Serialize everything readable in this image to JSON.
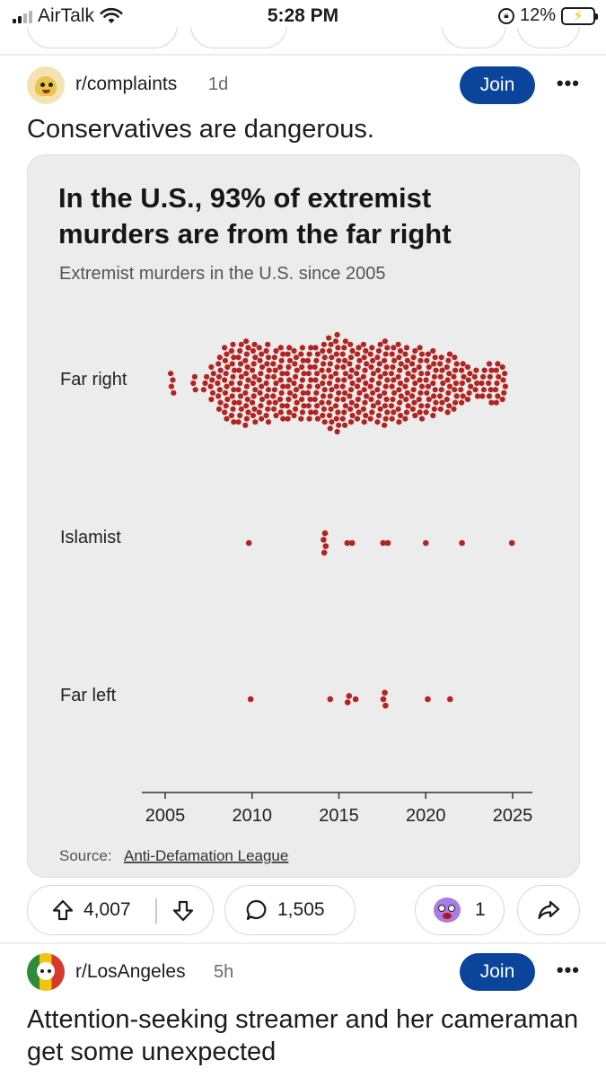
{
  "status_bar": {
    "carrier": "AirTalk",
    "time": "5:28 PM",
    "battery": "12%"
  },
  "post": {
    "subreddit": "r/complaints",
    "age": "1d",
    "join_label": "Join",
    "more_label": "•••",
    "title": "Conservatives are dangerous.",
    "upvotes": "4,007",
    "comments": "1,505",
    "awards": "1"
  },
  "chart_data": {
    "type": "scatter",
    "title_line1": "In the U.S., 93% of extremist",
    "title_line2": "murders are from the far right",
    "subtitle": "Extremist murders in the U.S. since 2005",
    "categories": [
      "Far right",
      "Islamist",
      "Far left"
    ],
    "xlim": [
      2005,
      2025
    ],
    "xticks": [
      2005,
      2010,
      2015,
      2020,
      2025
    ],
    "xtick_labels": [
      "2005",
      "2010",
      "2015",
      "2020",
      "2025"
    ],
    "source_prefix": "Source:",
    "source": "Anti-Defamation League",
    "dot_color": "#b3231f",
    "series": [
      {
        "category": "Far right",
        "dots_per_year": [
          [
            2005.4,
            4
          ],
          [
            2006.7,
            3
          ],
          [
            2007.3,
            3
          ],
          [
            2007.7,
            6
          ],
          [
            2008.1,
            9
          ],
          [
            2008.5,
            12
          ],
          [
            2008.9,
            13
          ],
          [
            2009.3,
            13
          ],
          [
            2009.7,
            14
          ],
          [
            2010.1,
            13
          ],
          [
            2010.5,
            12
          ],
          [
            2010.9,
            13
          ],
          [
            2011.3,
            11
          ],
          [
            2011.7,
            12
          ],
          [
            2012.1,
            12
          ],
          [
            2012.5,
            11
          ],
          [
            2012.9,
            12
          ],
          [
            2013.3,
            12
          ],
          [
            2013.7,
            12
          ],
          [
            2014.1,
            13
          ],
          [
            2014.5,
            15
          ],
          [
            2014.9,
            16
          ],
          [
            2015.3,
            14
          ],
          [
            2015.7,
            13
          ],
          [
            2016.1,
            12
          ],
          [
            2016.5,
            13
          ],
          [
            2016.9,
            12
          ],
          [
            2017.3,
            13
          ],
          [
            2017.7,
            14
          ],
          [
            2018.1,
            12
          ],
          [
            2018.5,
            13
          ],
          [
            2018.9,
            12
          ],
          [
            2019.3,
            11
          ],
          [
            2019.7,
            12
          ],
          [
            2020.1,
            10
          ],
          [
            2020.5,
            11
          ],
          [
            2020.9,
            9
          ],
          [
            2021.3,
            10
          ],
          [
            2021.7,
            9
          ],
          [
            2022.1,
            7
          ],
          [
            2022.5,
            6
          ],
          [
            2022.9,
            5
          ],
          [
            2023.3,
            5
          ],
          [
            2023.7,
            7
          ],
          [
            2024.1,
            7
          ],
          [
            2024.5,
            6
          ]
        ]
      },
      {
        "category": "Islamist",
        "dots_per_year": [
          [
            2009.9,
            1
          ],
          [
            2014.2,
            4
          ],
          [
            2015.4,
            1
          ],
          [
            2015.8,
            1
          ],
          [
            2017.5,
            1
          ],
          [
            2017.9,
            1
          ],
          [
            2020.0,
            1
          ],
          [
            2022.0,
            1
          ],
          [
            2025.0,
            1
          ]
        ]
      },
      {
        "category": "Far left",
        "dots_per_year": [
          [
            2010.0,
            1
          ],
          [
            2014.5,
            1
          ],
          [
            2015.5,
            2
          ],
          [
            2016.0,
            1
          ],
          [
            2017.6,
            3
          ],
          [
            2020.2,
            1
          ],
          [
            2021.4,
            1
          ]
        ]
      }
    ]
  },
  "next_post": {
    "subreddit": "r/LosAngeles",
    "age": "5h",
    "join_label": "Join",
    "more_label": "•••",
    "title": "Attention-seeking streamer and her cameraman get some unexpected"
  }
}
